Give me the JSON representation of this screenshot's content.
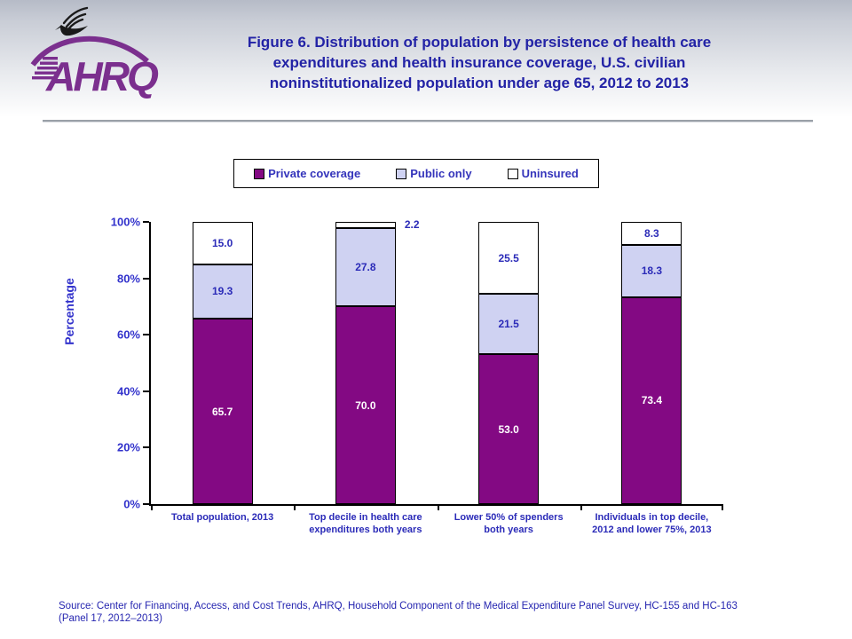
{
  "header": {
    "org": "AHRQ",
    "title_lines": [
      "Figure 6. Distribution of population by persistence of health care",
      "expenditures and health insurance coverage, U.S. civilian",
      "noninstitutionalized population under age 65, 2012 to 2013"
    ]
  },
  "legend": {
    "items": [
      {
        "label": "Private coverage",
        "color": "#830983"
      },
      {
        "label": "Public only",
        "color": "#cfd2f2"
      },
      {
        "label": "Uninsured",
        "color": "#ffffff"
      }
    ]
  },
  "chart_data": {
    "type": "bar",
    "stacked": true,
    "title": "Figure 6. Distribution of population by persistence of health care expenditures and health insurance coverage, U.S. civilian noninstitutionalized population under age 65, 2012 to 2013",
    "categories": [
      "Total population, 2013",
      "Top decile in health care\nexpenditures both years",
      "Lower 50% of spenders\nboth years",
      "Individuals in top decile,\n2012 and lower 75%, 2013"
    ],
    "series": [
      {
        "name": "Private coverage",
        "color": "#830983",
        "label_color": "#ffffff",
        "values": [
          65.7,
          70.0,
          53.0,
          73.4
        ]
      },
      {
        "name": "Public only",
        "color": "#cfd2f2",
        "label_color": "#2b2bb8",
        "values": [
          19.3,
          27.8,
          21.5,
          18.3
        ]
      },
      {
        "name": "Uninsured",
        "color": "#ffffff",
        "label_color": "#2b2bb8",
        "values": [
          15.0,
          2.2,
          25.5,
          8.3
        ]
      }
    ],
    "xlabel": "",
    "ylabel": "Percentage",
    "ylim": [
      0,
      100
    ],
    "yticks": [
      0,
      20,
      40,
      60,
      80,
      100
    ],
    "ytick_suffix": "%",
    "grid": false,
    "legend_position": "top"
  },
  "footer": {
    "source_line1": "Source: Center for Financing, Access, and Cost Trends, AHRQ, Household Component of the Medical Expenditure Panel Survey,  HC-155 and HC-163",
    "source_line2": "(Panel 17, 2012–2013)"
  }
}
